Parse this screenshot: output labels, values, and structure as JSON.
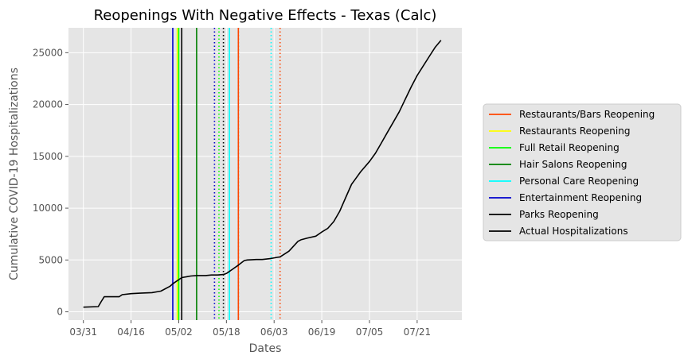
{
  "chart_data": {
    "type": "line",
    "title": "Reopenings With Negative Effects - Texas (Calc)",
    "xlabel": "Dates",
    "ylabel": "Cumulative COVID-19 Hospitalizations",
    "xlim": [
      -5,
      127
    ],
    "ylim": [
      -800,
      27400
    ],
    "x_ticks": [
      {
        "label": "03/31",
        "day": 0
      },
      {
        "label": "04/16",
        "day": 16
      },
      {
        "label": "05/02",
        "day": 32
      },
      {
        "label": "05/18",
        "day": 48
      },
      {
        "label": "06/03",
        "day": 64
      },
      {
        "label": "06/19",
        "day": 80
      },
      {
        "label": "07/05",
        "day": 96
      },
      {
        "label": "07/21",
        "day": 112
      }
    ],
    "y_ticks": [
      0,
      5000,
      10000,
      15000,
      20000,
      25000
    ],
    "grid": true,
    "legend_position": "right",
    "legend": [
      {
        "label": "Restaurants/Bars Reopening",
        "color": "#ff4500"
      },
      {
        "label": "Restaurants Reopening",
        "color": "#ffff00"
      },
      {
        "label": "Full Retail Reopening",
        "color": "#00ff00"
      },
      {
        "label": "Hair Salons Reopening",
        "color": "#008000"
      },
      {
        "label": "Personal Care Reopening",
        "color": "#00ffff"
      },
      {
        "label": "Entertainment Reopening",
        "color": "#0000cd"
      },
      {
        "label": "Parks Reopening",
        "color": "#000000"
      },
      {
        "label": "Actual Hospitalizations",
        "color": "#000000"
      }
    ],
    "reopening_lines": [
      {
        "name": "entertainment-reopening-solid",
        "day": 30,
        "color": "#0000cd",
        "style": "solid"
      },
      {
        "name": "restaurants-reopening-solid",
        "day": 31.5,
        "color": "#ffff00",
        "style": "solid"
      },
      {
        "name": "full-retail-reopening-solid",
        "day": 32,
        "color": "#00ff00",
        "style": "solid"
      },
      {
        "name": "parks-reopening-solid",
        "day": 33,
        "color": "#000000",
        "style": "solid"
      },
      {
        "name": "hair-salons-reopening-solid",
        "day": 38,
        "color": "#008000",
        "style": "solid"
      },
      {
        "name": "entertainment-reopening-dotted",
        "day": 44,
        "color": "#0000cd",
        "style": "dotted"
      },
      {
        "name": "full-retail-reopening-dotted",
        "day": 45.5,
        "color": "#00ff00",
        "style": "dotted"
      },
      {
        "name": "parks-reopening-dotted",
        "day": 47,
        "color": "#000000",
        "style": "dotted"
      },
      {
        "name": "personal-care-reopening-solid",
        "day": 49,
        "color": "#00ffff",
        "style": "solid"
      },
      {
        "name": "hair-salons-reopening-dotted",
        "day": 52,
        "color": "#008000",
        "style": "dotted"
      },
      {
        "name": "restaurants-bars-reopening-solid",
        "day": 52,
        "color": "#ff4500",
        "style": "solid"
      },
      {
        "name": "personal-care-reopening-dotted",
        "day": 63,
        "color": "#00ffff",
        "style": "dotted"
      },
      {
        "name": "restaurants-bars-reopening-dotted",
        "day": 66,
        "color": "#ff4500",
        "style": "dotted"
      }
    ],
    "series": [
      {
        "name": "Actual Hospitalizations",
        "color": "#000000",
        "x": [
          0,
          5,
          6,
          7,
          11,
          12,
          13,
          16,
          19,
          23,
          26,
          29,
          30,
          31,
          32,
          33,
          35,
          36,
          38,
          41,
          43,
          45,
          47,
          48,
          49,
          50,
          52,
          54,
          55,
          58,
          60,
          63,
          65,
          66,
          69,
          72,
          73,
          75,
          78,
          80,
          82,
          84,
          86,
          88,
          90,
          91,
          93,
          96,
          98,
          100,
          102,
          104,
          106,
          108,
          110,
          112,
          114,
          116,
          118,
          120
        ],
        "y": [
          450,
          500,
          1000,
          1450,
          1450,
          1450,
          1650,
          1750,
          1800,
          1850,
          2000,
          2450,
          2700,
          2900,
          3100,
          3300,
          3400,
          3450,
          3500,
          3500,
          3550,
          3550,
          3600,
          3700,
          3900,
          4100,
          4500,
          4950,
          5000,
          5050,
          5050,
          5150,
          5250,
          5300,
          5850,
          6800,
          6950,
          7100,
          7300,
          7700,
          8050,
          8700,
          9700,
          11000,
          12300,
          12700,
          13500,
          14500,
          15300,
          16300,
          17300,
          18300,
          19300,
          20500,
          21700,
          22800,
          23700,
          24600,
          25500,
          26200
        ]
      }
    ]
  }
}
